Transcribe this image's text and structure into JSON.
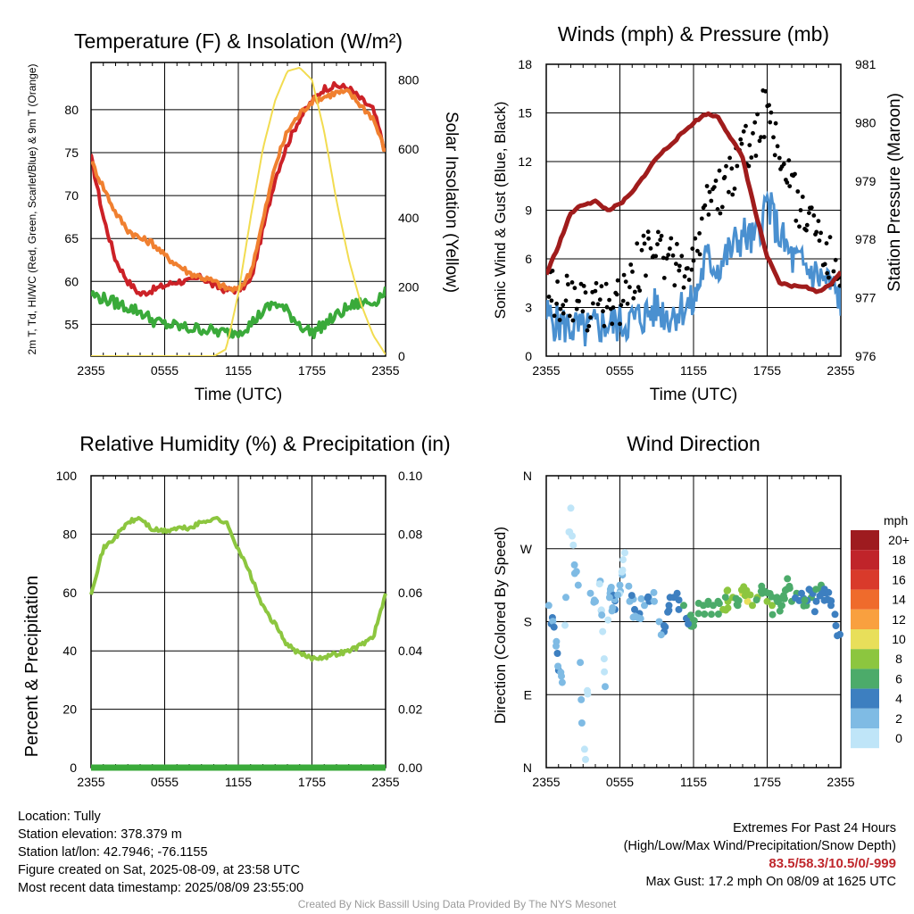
{
  "chart_data": [
    {
      "type": "line",
      "title": "Temperature (F) & Insolation (W/m²)",
      "xlabel": "Time (UTC)",
      "ylabel": "2m T, Td, HI/WC (Red, Green, Scarlet/Blue) & 9m T (Orange)",
      "y2label": "Solar Insolation (Yellow)",
      "x_ticks": [
        "2355",
        "0555",
        "1155",
        "1755",
        "2355"
      ],
      "y_ticks": [
        "55",
        "60",
        "65",
        "70",
        "75",
        "80"
      ],
      "y2_ticks": [
        "0",
        "200",
        "400",
        "600",
        "800"
      ],
      "ylim": [
        51.3,
        85.5
      ],
      "y2lim": [
        0,
        850
      ],
      "grid": true,
      "series": [
        {
          "name": "2m T",
          "axis": "left",
          "color": "#cc2127",
          "x": [
            0,
            1,
            2,
            3,
            4,
            5,
            6,
            7,
            8,
            9,
            10,
            11,
            12,
            13,
            14,
            15,
            16,
            17,
            18,
            19,
            20,
            21,
            22,
            23,
            24
          ],
          "values": [
            74.5,
            67.5,
            62.5,
            60,
            58.5,
            59,
            59.5,
            60,
            60,
            60.5,
            59.5,
            59,
            59,
            60,
            66,
            72,
            76,
            79,
            81,
            82.5,
            82.8,
            82.5,
            81.2,
            80,
            75
          ]
        },
        {
          "name": "9m T",
          "axis": "left",
          "color": "#f08030",
          "x": [
            0,
            1,
            2,
            3,
            4,
            5,
            6,
            7,
            8,
            9,
            10,
            11,
            12,
            13,
            14,
            15,
            16,
            17,
            18,
            19,
            20,
            21,
            22,
            23,
            24
          ],
          "values": [
            74,
            71,
            68,
            66,
            65,
            64.5,
            63,
            62,
            61,
            60.5,
            60,
            59.2,
            59,
            61,
            67,
            73.5,
            77.5,
            79.5,
            81,
            81.5,
            82,
            82,
            80.5,
            79,
            75
          ]
        },
        {
          "name": "Td",
          "axis": "left",
          "color": "#3aaa3a",
          "x": [
            0,
            1,
            2,
            3,
            4,
            5,
            6,
            7,
            8,
            9,
            10,
            11,
            12,
            13,
            14,
            15,
            16,
            17,
            18,
            19,
            20,
            21,
            22,
            23,
            24
          ],
          "values": [
            58.5,
            58,
            57.5,
            57,
            56.5,
            55.5,
            55,
            54.8,
            54.5,
            54.5,
            54.2,
            54,
            54.2,
            55,
            56.5,
            57.5,
            56.5,
            55,
            54,
            55,
            56,
            57,
            57.5,
            57.5,
            59
          ]
        },
        {
          "name": "Solar Insolation",
          "axis": "right",
          "color": "#f2dc50",
          "x": [
            0,
            1,
            2,
            3,
            4,
            5,
            6,
            7,
            8,
            9,
            10,
            11,
            12,
            13,
            14,
            15,
            16,
            17,
            18,
            19,
            20,
            21,
            22,
            23,
            24
          ],
          "values": [
            0,
            0,
            0,
            0,
            0,
            0,
            0,
            0,
            0,
            0,
            0,
            20,
            180,
            400,
            600,
            740,
            825,
            835,
            800,
            650,
            450,
            280,
            150,
            60,
            5
          ]
        }
      ]
    },
    {
      "type": "scatter",
      "title": "Winds (mph) & Pressure (mb)",
      "xlabel": "Time (UTC)",
      "ylabel": "Sonic Wind & Gust (Blue, Black)",
      "y2label": "Station Pressure (Maroon)",
      "x_ticks": [
        "2355",
        "0555",
        "1155",
        "1755",
        "2355"
      ],
      "y_ticks": [
        "0",
        "3",
        "6",
        "9",
        "12",
        "15",
        "18"
      ],
      "y2_ticks": [
        "976",
        "977",
        "978",
        "979",
        "980",
        "981"
      ],
      "ylim": [
        0,
        18
      ],
      "y2lim": [
        976,
        981
      ],
      "grid": true,
      "series": [
        {
          "name": "Sonic Wind",
          "axis": "left",
          "color": "#4a90d0",
          "x": [
            0,
            1,
            2,
            3,
            4,
            5,
            6,
            7,
            8,
            9,
            10,
            11,
            12,
            13,
            14,
            15,
            16,
            17,
            18,
            19,
            20,
            21,
            22,
            23,
            24
          ],
          "values": [
            2.5,
            2,
            1.8,
            1.5,
            1.8,
            2,
            2,
            2.2,
            2.5,
            3,
            2.5,
            3,
            3.2,
            6,
            5.5,
            6.5,
            7.5,
            7,
            9.5,
            7.5,
            6,
            5.5,
            5,
            4.5,
            3.5
          ]
        },
        {
          "name": "Gust",
          "axis": "left",
          "color": "#000000",
          "x": [
            0,
            1,
            2,
            3,
            4,
            5,
            6,
            7,
            8,
            9,
            10,
            11,
            12,
            13,
            14,
            15,
            16,
            17,
            18,
            19,
            20,
            21,
            22,
            23,
            24
          ],
          "values": [
            4.5,
            3.5,
            3.5,
            3,
            3,
            3,
            3.5,
            5,
            6,
            7,
            6,
            5.5,
            6,
            9,
            10,
            11,
            12.5,
            13.5,
            15.5,
            12.5,
            10,
            9,
            8,
            6,
            4
          ]
        },
        {
          "name": "Station Pressure",
          "axis": "right",
          "color": "#a01c1c",
          "x": [
            0,
            1,
            2,
            3,
            4,
            5,
            6,
            7,
            8,
            9,
            10,
            11,
            12,
            13,
            14,
            15,
            16,
            17,
            18,
            19,
            20,
            21,
            22,
            23,
            24
          ],
          "values": [
            977.4,
            977.9,
            978.45,
            978.6,
            978.65,
            978.5,
            978.6,
            978.8,
            979.1,
            979.4,
            979.6,
            979.8,
            980,
            980.15,
            980.1,
            979.75,
            979.4,
            978.5,
            977.7,
            977.25,
            977.2,
            977.2,
            977.1,
            977.2,
            977.45
          ]
        }
      ]
    },
    {
      "type": "line",
      "title": "Relative Humidity (%) & Precipitation (in)",
      "ylabel": "Percent & Precipitation",
      "x_ticks": [
        "2355",
        "0555",
        "1155",
        "1755",
        "2355"
      ],
      "y_ticks": [
        "0",
        "20",
        "40",
        "60",
        "80",
        "100"
      ],
      "y2_ticks": [
        "0.00",
        "0.02",
        "0.04",
        "0.06",
        "0.08",
        "0.10"
      ],
      "ylim": [
        0,
        100
      ],
      "y2lim": [
        0,
        0.1
      ],
      "grid": true,
      "series": [
        {
          "name": "Relative Humidity",
          "axis": "left",
          "color": "#8cc63f",
          "x": [
            0,
            1,
            2,
            3,
            4,
            5,
            6,
            7,
            8,
            9,
            10,
            11,
            12,
            13,
            14,
            15,
            16,
            17,
            18,
            19,
            20,
            21,
            22,
            23,
            24
          ],
          "values": [
            60,
            75,
            79,
            84,
            85.5,
            81.5,
            81,
            82,
            82,
            84,
            85.5,
            84,
            75,
            66,
            55,
            49,
            42,
            39,
            37.5,
            38,
            39,
            40,
            42,
            45,
            59
          ]
        },
        {
          "name": "Precipitation",
          "axis": "right",
          "color": "#3aaa3a",
          "x": [
            0,
            24
          ],
          "values": [
            0,
            0
          ]
        }
      ]
    },
    {
      "type": "scatter",
      "title": "Wind Direction",
      "ylabel": "Direction (Colored By Speed)",
      "x_ticks": [
        "2355",
        "0555",
        "1155",
        "1755",
        "2355"
      ],
      "y_ticks": [
        "N",
        "E",
        "S",
        "W",
        "N"
      ],
      "ylim": [
        0,
        360
      ],
      "grid": true,
      "legend": {
        "title": "mph",
        "labels": [
          "20+",
          "18",
          "16",
          "14",
          "12",
          "10",
          "8",
          "6",
          "4",
          "2",
          "0"
        ],
        "colors": [
          "#9e1b1f",
          "#c0242a",
          "#d93a2b",
          "#ef6b2c",
          "#f9a03f",
          "#e8df5a",
          "#8cc63f",
          "#4cab6a",
          "#3d7fc0",
          "#7fbbe4",
          "#bfe5f8"
        ],
        "placement": "right"
      },
      "series": [
        {
          "name": "Direction",
          "x": [
            0.2,
            0.5,
            0.8,
            1,
            1.3,
            1.6,
            2,
            2.3,
            2.6,
            2.9,
            3.2,
            3.6,
            4,
            4.4,
            4.8,
            5.2,
            5.6,
            6,
            6.4,
            6.8,
            7.2,
            7.6,
            8,
            8.4,
            8.8,
            9.2,
            9.6,
            10,
            10.4,
            10.8,
            11.2,
            11.6,
            12,
            12.4,
            12.8,
            13.2,
            13.6,
            14,
            14.4,
            14.8,
            15.2,
            15.6,
            16,
            16.4,
            16.8,
            17.2,
            17.6,
            18,
            18.4,
            18.8,
            19.2,
            19.6,
            20,
            20.4,
            20.8,
            21.2,
            21.6,
            22,
            22.4,
            22.8,
            23.2,
            23.6
          ],
          "values": [
            200,
            185,
            150,
            120,
            105,
            210,
            320,
            250,
            225,
            55,
            10,
            215,
            205,
            230,
            100,
            215,
            195,
            225,
            265,
            205,
            195,
            190,
            200,
            205,
            205,
            180,
            175,
            200,
            210,
            195,
            200,
            185,
            175,
            190,
            200,
            205,
            200,
            205,
            195,
            205,
            210,
            200,
            215,
            205,
            200,
            210,
            215,
            205,
            200,
            210,
            200,
            220,
            205,
            215,
            215,
            200,
            210,
            205,
            225,
            215,
            200,
            175
          ],
          "speeds": [
            2,
            3,
            2,
            3,
            2,
            1,
            0,
            1,
            2,
            1,
            0,
            1,
            2,
            1,
            1,
            2,
            3,
            1,
            0,
            2,
            3,
            3,
            2,
            3,
            2,
            1,
            4,
            3,
            4,
            4,
            5,
            5,
            5,
            6,
            5,
            6,
            5,
            6,
            7,
            8,
            7,
            6,
            9,
            9,
            8,
            7,
            6,
            7,
            7,
            5,
            6,
            6,
            5,
            5,
            4,
            5,
            5,
            4,
            5,
            4,
            4,
            4
          ]
        }
      ]
    }
  ],
  "info": {
    "location": "Location: Tully",
    "elevation": "Station elevation: 378.379 m",
    "latlon": "Station lat/lon: 42.7946; -76.1155",
    "created": "Figure created on Sat, 2025-08-09, at 23:58 UTC",
    "recent": "Most recent data timestamp: 2025/08/09 23:55:00"
  },
  "extremes": {
    "heading": "Extremes For Past 24 Hours",
    "subheading": "(High/Low/Max Wind/Precipitation/Snow Depth)",
    "values": "83.5/58.3/10.5/0/-999",
    "max_gust": "Max Gust: 17.2 mph On 08/09 at 1625 UTC"
  },
  "credit": "Created By Nick Bassill Using Data Provided By The NYS Mesonet"
}
